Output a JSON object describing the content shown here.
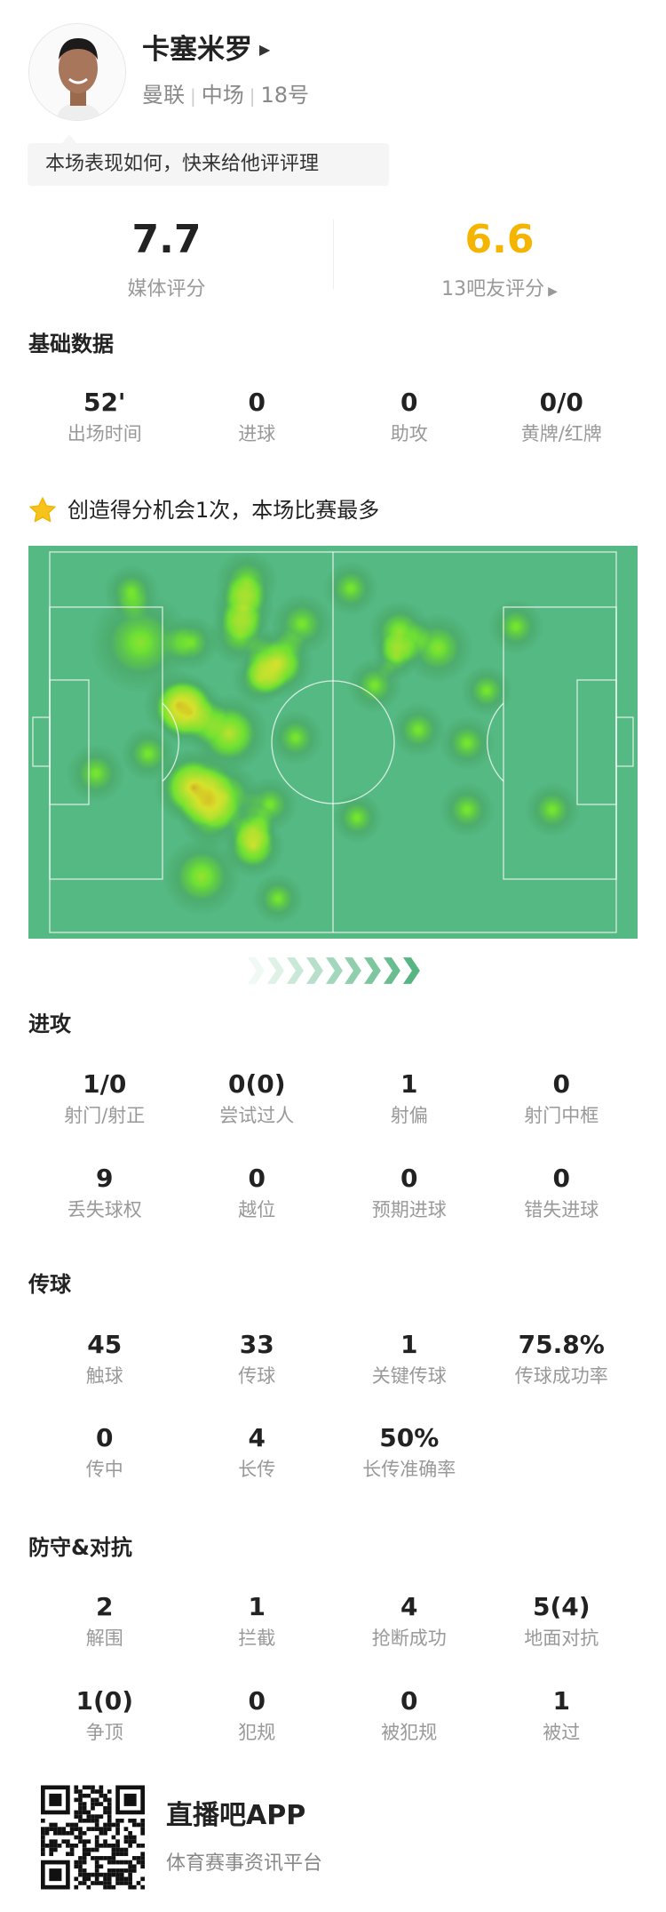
{
  "player": {
    "name": "卡塞米罗",
    "team": "曼联",
    "position": "中场",
    "number": "18号",
    "prompt": "本场表现如何，快来给他评评理"
  },
  "ratings": {
    "media_value": "7.7",
    "media_label": "媒体评分",
    "fan_value": "6.6",
    "fan_label": "13吧友评分",
    "fan_color": "#f5b400"
  },
  "basic": {
    "title": "基础数据",
    "items": [
      {
        "value": "52'",
        "label": "出场时间"
      },
      {
        "value": "0",
        "label": "进球"
      },
      {
        "value": "0",
        "label": "助攻"
      },
      {
        "value": "0/0",
        "label": "黄牌/红牌"
      }
    ]
  },
  "highlight": {
    "icon": "star-icon",
    "text": "创造得分机会1次，本场比赛最多",
    "color": "#f7c21a"
  },
  "heatmap": {
    "pitch_color": "#55b983"
  },
  "attack": {
    "title": "进攻",
    "items": [
      {
        "value": "1/0",
        "label": "射门/射正"
      },
      {
        "value": "0(0)",
        "label": "尝试过人"
      },
      {
        "value": "1",
        "label": "射偏"
      },
      {
        "value": "0",
        "label": "射门中框"
      },
      {
        "value": "9",
        "label": "丢失球权"
      },
      {
        "value": "0",
        "label": "越位"
      },
      {
        "value": "0",
        "label": "预期进球"
      },
      {
        "value": "0",
        "label": "错失进球"
      }
    ]
  },
  "passing": {
    "title": "传球",
    "items": [
      {
        "value": "45",
        "label": "触球"
      },
      {
        "value": "33",
        "label": "传球"
      },
      {
        "value": "1",
        "label": "关键传球"
      },
      {
        "value": "75.8%",
        "label": "传球成功率"
      },
      {
        "value": "0",
        "label": "传中"
      },
      {
        "value": "4",
        "label": "长传"
      },
      {
        "value": "50%",
        "label": "长传准确率"
      }
    ]
  },
  "defense": {
    "title": "防守&对抗",
    "items": [
      {
        "value": "2",
        "label": "解围"
      },
      {
        "value": "1",
        "label": "拦截"
      },
      {
        "value": "4",
        "label": "抢断成功"
      },
      {
        "value": "5(4)",
        "label": "地面对抗"
      },
      {
        "value": "1(0)",
        "label": "争顶"
      },
      {
        "value": "0",
        "label": "犯规"
      },
      {
        "value": "0",
        "label": "被犯规"
      },
      {
        "value": "1",
        "label": "被过"
      }
    ]
  },
  "footer": {
    "app_name": "直播吧APP",
    "tagline": "体育赛事资讯平台"
  }
}
